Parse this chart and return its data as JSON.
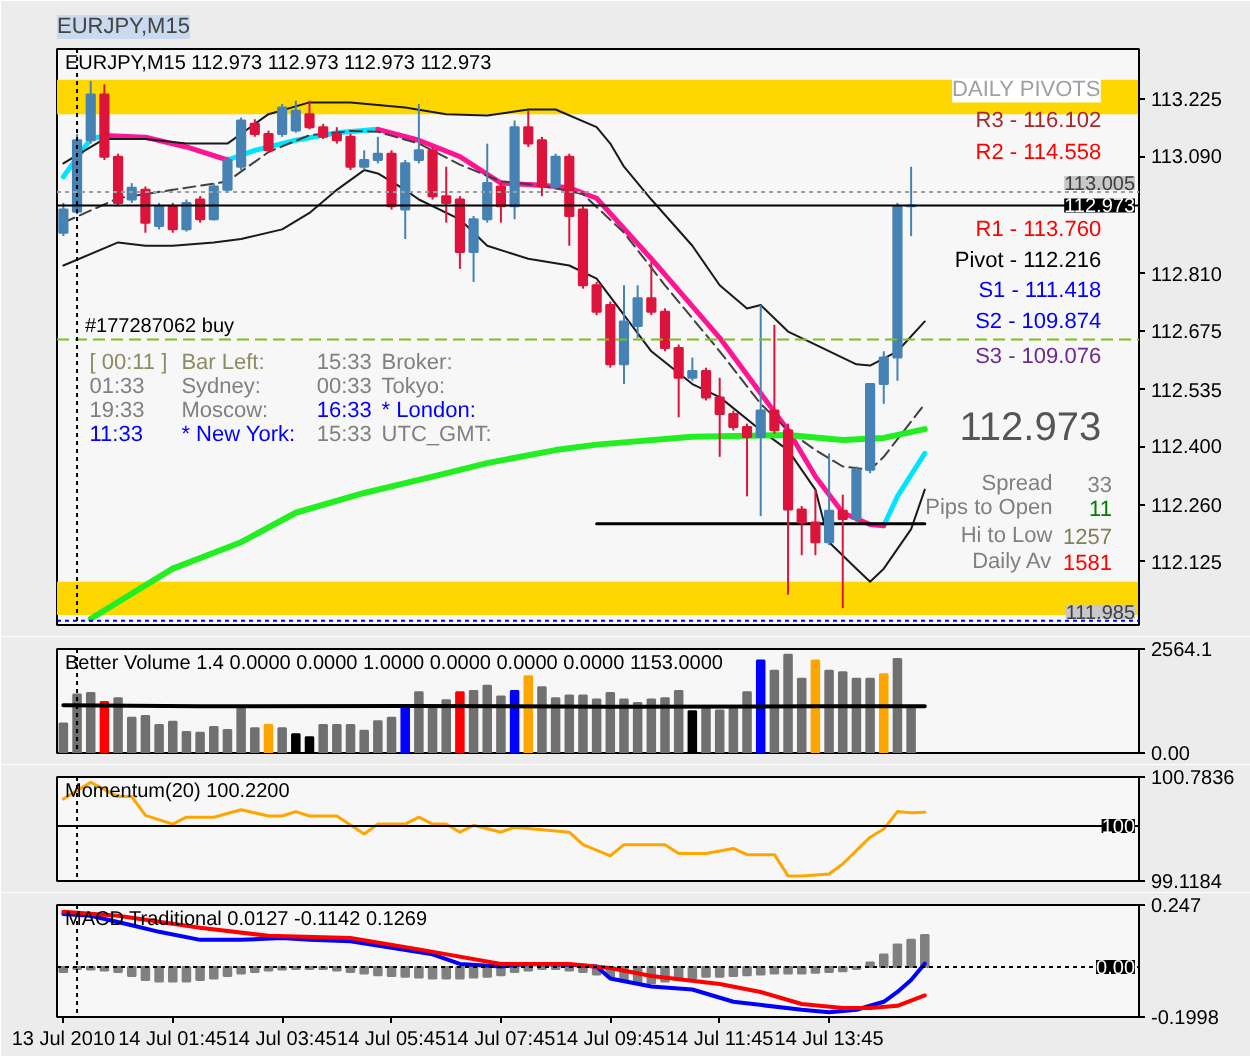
{
  "chart_data": [
    {
      "type": "candlestick",
      "title": "EURJPY,M15",
      "subtitle": "EURJPY,M15  112.973 112.973 112.973 112.973",
      "x": [
        "2010-07-13T23:45",
        "2010-07-14T00:00",
        "2010-07-14T00:15",
        "2010-07-14T00:30",
        "2010-07-14T00:45",
        "2010-07-14T01:00",
        "2010-07-14T01:15",
        "2010-07-14T01:30",
        "2010-07-14T01:45",
        "2010-07-14T02:00",
        "2010-07-14T02:15",
        "2010-07-14T02:30",
        "2010-07-14T02:45",
        "2010-07-14T03:00",
        "2010-07-14T03:15",
        "2010-07-14T03:30",
        "2010-07-14T03:45",
        "2010-07-14T04:00",
        "2010-07-14T04:15",
        "2010-07-14T04:30",
        "2010-07-14T04:45",
        "2010-07-14T05:00",
        "2010-07-14T05:15",
        "2010-07-14T05:30",
        "2010-07-14T05:45",
        "2010-07-14T06:00",
        "2010-07-14T06:15",
        "2010-07-14T06:30",
        "2010-07-14T06:45",
        "2010-07-14T07:00",
        "2010-07-14T07:15",
        "2010-07-14T07:30",
        "2010-07-14T07:45",
        "2010-07-14T08:00",
        "2010-07-14T08:15",
        "2010-07-14T08:30",
        "2010-07-14T08:45",
        "2010-07-14T09:00",
        "2010-07-14T09:15",
        "2010-07-14T09:30",
        "2010-07-14T09:45",
        "2010-07-14T10:00",
        "2010-07-14T10:15",
        "2010-07-14T10:30",
        "2010-07-14T10:45",
        "2010-07-14T11:00",
        "2010-07-14T11:15",
        "2010-07-14T11:30",
        "2010-07-14T11:45",
        "2010-07-14T12:00",
        "2010-07-14T12:15",
        "2010-07-14T12:30",
        "2010-07-14T12:45",
        "2010-07-14T13:00",
        "2010-07-14T13:15",
        "2010-07-14T13:30",
        "2010-07-14T13:45",
        "2010-07-14T14:00",
        "2010-07-14T14:15",
        "2010-07-14T14:30",
        "2010-07-14T14:45",
        "2010-07-14T15:00",
        "2010-07-14T15:15"
      ],
      "ohlc": [
        [
          112.908,
          112.979,
          112.9,
          112.963
        ],
        [
          112.958,
          113.143,
          112.952,
          113.128
        ],
        [
          113.128,
          113.269,
          113.12,
          113.237
        ],
        [
          113.237,
          113.261,
          113.081,
          113.089
        ],
        [
          113.089,
          113.096,
          112.971,
          112.979
        ],
        [
          112.987,
          113.026,
          112.979,
          113.015
        ],
        [
          113.01,
          113.018,
          112.908,
          112.932
        ],
        [
          112.924,
          112.979,
          112.916,
          112.971
        ],
        [
          112.971,
          112.979,
          112.908,
          112.916
        ],
        [
          112.916,
          112.987,
          112.911,
          112.979
        ],
        [
          112.987,
          112.995,
          112.932,
          112.94
        ],
        [
          112.94,
          113.026,
          112.937,
          113.018
        ],
        [
          113.01,
          113.089,
          113.005,
          113.081
        ],
        [
          113.065,
          113.182,
          113.057,
          113.175
        ],
        [
          113.167,
          113.178,
          113.136,
          113.143
        ],
        [
          113.143,
          113.151,
          113.099,
          113.104
        ],
        [
          113.143,
          113.214,
          113.136,
          113.206
        ],
        [
          113.151,
          113.222,
          113.146,
          113.198
        ],
        [
          113.19,
          113.222,
          113.154,
          113.159
        ],
        [
          113.159,
          113.167,
          113.131,
          113.136
        ],
        [
          113.143,
          113.159,
          113.12,
          113.128
        ],
        [
          113.136,
          113.143,
          113.057,
          113.065
        ],
        [
          113.065,
          113.104,
          113.057,
          113.081
        ],
        [
          113.081,
          113.136,
          113.073,
          113.096
        ],
        [
          113.096,
          113.104,
          112.963,
          112.971
        ],
        [
          112.963,
          113.081,
          112.893,
          113.073
        ],
        [
          113.081,
          113.214,
          113.073,
          113.104
        ],
        [
          113.104,
          113.112,
          112.987,
          112.995
        ],
        [
          112.995,
          113.065,
          112.932,
          112.979
        ],
        [
          112.987,
          112.995,
          112.822,
          112.862
        ],
        [
          112.862,
          112.948,
          112.791,
          112.94
        ],
        [
          112.94,
          113.12,
          112.932,
          113.026
        ],
        [
          113.018,
          113.026,
          112.932,
          112.971
        ],
        [
          112.971,
          113.175,
          112.94,
          113.159
        ],
        [
          113.159,
          113.198,
          113.112,
          113.12
        ],
        [
          113.128,
          113.136,
          112.995,
          113.018
        ],
        [
          113.018,
          113.096,
          113.01,
          113.089
        ],
        [
          113.089,
          113.096,
          112.877,
          112.948
        ],
        [
          112.963,
          112.971,
          112.775,
          112.783
        ],
        [
          112.783,
          112.791,
          112.712,
          112.72
        ],
        [
          112.736,
          112.744,
          112.587,
          112.595
        ],
        [
          112.595,
          112.783,
          112.548,
          112.697
        ],
        [
          112.686,
          112.783,
          112.658,
          112.752
        ],
        [
          112.752,
          112.838,
          112.712,
          112.72
        ],
        [
          112.72,
          112.728,
          112.626,
          112.634
        ],
        [
          112.634,
          112.642,
          112.469,
          112.563
        ],
        [
          112.563,
          112.611,
          112.556,
          112.579
        ],
        [
          112.579,
          112.587,
          112.509,
          112.516
        ],
        [
          112.516,
          112.563,
          112.375,
          112.477
        ],
        [
          112.477,
          112.485,
          112.438,
          112.446
        ],
        [
          112.446,
          112.454,
          112.281,
          112.422
        ],
        [
          112.422,
          112.736,
          112.234,
          112.485
        ],
        [
          112.485,
          112.689,
          112.43,
          112.438
        ],
        [
          112.438,
          112.454,
          112.047,
          112.25
        ],
        [
          112.25,
          112.258,
          112.141,
          112.219
        ],
        [
          112.219,
          112.297,
          112.141,
          112.172
        ],
        [
          112.172,
          112.383,
          112.165,
          112.247
        ],
        [
          112.247,
          112.285,
          112.015,
          112.227
        ],
        [
          112.227,
          112.352,
          112.219,
          112.344
        ],
        [
          112.344,
          112.548,
          112.336,
          112.548
        ],
        [
          112.548,
          112.626,
          112.501,
          112.611
        ],
        [
          112.611,
          112.979,
          112.556,
          112.971
        ],
        [
          112.971,
          113.065,
          112.9,
          112.973
        ]
      ],
      "colors": [
        "#4682b4",
        "#4682b4",
        "#4682b4",
        "#dc143c",
        "#dc143c",
        "#4682b4",
        "#dc143c",
        "#4682b4",
        "#dc143c",
        "#4682b4",
        "#dc143c",
        "#4682b4",
        "#4682b4",
        "#4682b4",
        "#dc143c",
        "#dc143c",
        "#4682b4",
        "#4682b4",
        "#dc143c",
        "#dc143c",
        "#dc143c",
        "#dc143c",
        "#4682b4",
        "#4682b4",
        "#dc143c",
        "#4682b4",
        "#4682b4",
        "#dc143c",
        "#dc143c",
        "#dc143c",
        "#4682b4",
        "#4682b4",
        "#dc143c",
        "#4682b4",
        "#dc143c",
        "#dc143c",
        "#4682b4",
        "#dc143c",
        "#dc143c",
        "#dc143c",
        "#dc143c",
        "#4682b4",
        "#4682b4",
        "#dc143c",
        "#dc143c",
        "#dc143c",
        "#4682b4",
        "#dc143c",
        "#dc143c",
        "#dc143c",
        "#dc143c",
        "#4682b4",
        "#dc143c",
        "#dc143c",
        "#dc143c",
        "#dc143c",
        "#4682b4",
        "#dc143c",
        "#4682b4",
        "#4682b4",
        "#4682b4",
        "#4682b4",
        "#4682b4"
      ],
      "series": [
        {
          "type": "line",
          "color": "#00e5ff",
          "x": [
            "2010-07-13T23:45",
            "2010-07-14T00:15",
            "2010-07-14T00:30",
            "2010-07-14T00:45",
            "2010-07-14T02:45",
            "2010-07-14T03:15",
            "2010-07-14T04:00",
            "2010-07-14T04:45",
            "2010-07-14T05:30",
            "2010-07-14T05:45",
            "2010-07-14T14:45",
            "2010-07-14T15:00",
            "2010-07-14T15:30"
          ],
          "values": [
            113.041,
            113.131,
            113.139,
            null,
            113.081,
            113.104,
            113.128,
            113.146,
            113.154,
            null,
            112.211,
            112.281,
            112.383
          ]
        },
        {
          "type": "line",
          "color": "#ff1493",
          "x": [
            "2010-07-14T00:30",
            "2010-07-14T01:15",
            "2010-07-14T02:00",
            "2010-07-14T02:45",
            "2010-07-14T03:00",
            "2010-07-14T05:30",
            "2010-07-14T06:15",
            "2010-07-14T07:00",
            "2010-07-14T07:45",
            "2010-07-14T08:30",
            "2010-07-14T09:00",
            "2010-07-14T09:30",
            "2010-07-14T10:30",
            "2010-07-14T11:45",
            "2010-07-14T13:00",
            "2010-07-14T13:30",
            "2010-07-14T14:00",
            "2010-07-14T14:30",
            "2010-07-14T14:45"
          ],
          "values": [
            113.139,
            113.135,
            113.112,
            113.081,
            null,
            113.154,
            113.128,
            113.089,
            113.026,
            113.021,
            113.015,
            112.99,
            112.846,
            112.658,
            112.438,
            112.328,
            112.242,
            112.214,
            112.211
          ]
        },
        {
          "type": "line",
          "color": "#1a1a1a",
          "x": [
            "2010-07-13T23:45",
            "2010-07-14T00:30",
            "2010-07-14T01:15",
            "2010-07-14T02:00",
            "2010-07-14T02:45",
            "2010-07-14T03:30",
            "2010-07-14T04:15",
            "2010-07-14T05:00",
            "2010-07-14T06:00",
            "2010-07-14T06:45",
            "2010-07-14T07:30",
            "2010-07-14T08:15",
            "2010-07-14T08:45",
            "2010-07-14T09:30",
            "2010-07-14T09:45",
            "2010-07-14T10:00",
            "2010-07-14T10:30",
            "2010-07-14T11:15",
            "2010-07-14T11:45",
            "2010-07-14T12:15",
            "2010-07-14T12:30",
            "2010-07-14T13:00",
            "2010-07-14T13:30",
            "2010-07-14T14:15",
            "2010-07-14T14:30",
            "2010-07-14T15:00",
            "2010-07-14T15:30"
          ],
          "values": [
            113.073,
            113.131,
            113.131,
            113.12,
            113.12,
            113.19,
            113.218,
            113.218,
            113.206,
            113.19,
            113.187,
            113.201,
            113.201,
            113.159,
            113.12,
            113.065,
            112.987,
            112.877,
            112.783,
            112.728,
            112.736,
            112.673,
            112.642,
            112.595,
            112.592,
            112.626,
            112.697
          ]
        },
        {
          "type": "line",
          "color": "#1a1a1a",
          "x": [
            "2010-07-13T23:45",
            "2010-07-14T00:45",
            "2010-07-14T01:15",
            "2010-07-14T01:45",
            "2010-07-14T02:30",
            "2010-07-14T03:00",
            "2010-07-14T03:45",
            "2010-07-14T04:15",
            "2010-07-14T04:45",
            "2010-07-14T05:15",
            "2010-07-14T05:30",
            "2010-07-14T06:00",
            "2010-07-14T06:15",
            "2010-07-14T07:00",
            "2010-07-14T07:30",
            "2010-07-14T08:15",
            "2010-07-14T09:00",
            "2010-07-14T09:30",
            "2010-07-14T10:30",
            "2010-07-14T11:15",
            "2010-07-14T11:45",
            "2010-07-14T12:30",
            "2010-07-14T13:00",
            "2010-07-14T13:30",
            "2010-07-14T13:45",
            "2010-07-14T14:15",
            "2010-07-14T14:30",
            "2010-07-14T14:45",
            "2010-07-14T15:15",
            "2010-07-14T15:30"
          ],
          "values": [
            112.83,
            112.885,
            112.877,
            112.877,
            112.885,
            112.893,
            112.916,
            112.955,
            113.01,
            113.057,
            113.049,
            113.01,
            112.987,
            112.94,
            112.877,
            112.846,
            112.83,
            112.799,
            112.626,
            112.548,
            112.517,
            112.438,
            112.391,
            112.297,
            112.172,
            112.109,
            112.078,
            112.109,
            112.203,
            112.297
          ]
        },
        {
          "type": "line",
          "color": "#404040",
          "line_style": "dashed",
          "x": [
            "2010-07-13T23:45",
            "2010-07-14T00:45",
            "2010-07-14T01:45",
            "2010-07-14T02:45",
            "2010-07-14T03:30",
            "2010-07-14T04:15",
            "2010-07-14T05:00",
            "2010-07-14T05:30",
            "2010-07-14T06:15",
            "2010-07-14T07:00",
            "2010-07-14T07:45",
            "2010-07-14T08:30",
            "2010-07-14T09:15",
            "2010-07-14T10:00",
            "2010-07-14T10:45",
            "2010-07-14T11:45",
            "2010-07-14T12:30",
            "2010-07-14T13:00",
            "2010-07-14T13:30",
            "2010-07-14T14:00",
            "2010-07-14T14:30",
            "2010-07-14T14:45",
            "2010-07-14T15:30"
          ],
          "values": [
            112.932,
            112.99,
            113.01,
            113.03,
            113.1,
            113.14,
            113.15,
            113.148,
            113.12,
            113.07,
            113.03,
            113.02,
            113.0,
            112.908,
            112.783,
            112.626,
            112.501,
            112.438,
            112.391,
            112.352,
            112.344,
            112.375,
            112.501
          ]
        },
        {
          "type": "line",
          "color": "#22ee22",
          "x": [
            "2010-07-14T00:15",
            "2010-07-14T01:45",
            "2010-07-14T03:00",
            "2010-07-14T04:00",
            "2010-07-14T05:15",
            "2010-07-14T06:30",
            "2010-07-14T07:30",
            "2010-07-14T08:45",
            "2010-07-14T09:30",
            "2010-07-14T11:15",
            "2010-07-14T13:00",
            "2010-07-14T14:00",
            "2010-07-14T14:45",
            "2010-07-14T15:30"
          ],
          "values": [
            111.99,
            112.109,
            112.172,
            112.242,
            112.289,
            112.328,
            112.36,
            112.391,
            112.404,
            112.423,
            112.427,
            112.415,
            112.42,
            112.441
          ]
        },
        {
          "type": "line",
          "color": "#000000",
          "x": [
            "2010-07-14T09:30",
            "2010-07-14T15:30"
          ],
          "values": [
            112.216,
            112.216
          ]
        }
      ],
      "xlim": [
        "2010-07-13T23:38",
        "2010-07-14T19:25"
      ],
      "ylim": [
        111.975,
        113.345
      ],
      "yticks": [
        113.225,
        {
          "value": 113.09,
          "label": "113.090"
        },
        {
          "value": 112.81,
          "label": "112.810"
        },
        112.675,
        112.535,
        {
          "value": 112.4,
          "label": "112.400"
        },
        {
          "value": 112.26,
          "label": "112.260"
        },
        112.125
      ],
      "tick_labels": "y",
      "bands": [
        {
          "axis": "y",
          "from": 113.19,
          "to": 113.272,
          "color": "#ffd700"
        },
        {
          "axis": "y",
          "from": 111.999,
          "to": 112.078,
          "color": "#ffd700"
        }
      ],
      "ref_lines": [
        {
          "axis": "y",
          "value": 112.973,
          "label": "112.973",
          "color": "#000000"
        },
        {
          "axis": "y",
          "value": 113.005,
          "label": "113.005",
          "color": "#a0a0a0",
          "line_style": "dotted"
        },
        {
          "axis": "y",
          "value": 112.654,
          "label": "#177287062 buy",
          "color": "#7cc01e",
          "line_style": "dashed"
        },
        {
          "axis": "y",
          "value": 111.985,
          "label": "111.985",
          "color": "#0000ff",
          "line_style": "dotted"
        },
        {
          "axis": "x",
          "value": "2010-07-14T00:00",
          "color": "#000000",
          "line_style": "dotted"
        }
      ],
      "annotations": [
        "DAILY PIVOTS",
        "R3 - 116.102",
        "R2 - 114.558",
        "R1 - 113.760",
        "Pivot - 112.216",
        "S1 - 111.418",
        "S2 - 109.874",
        "S3 - 109.076",
        "112.973",
        "Spread",
        "33",
        "Pips to Open",
        "11",
        "Hi to Low",
        "1257",
        "Daily Av",
        "1581",
        "[ 00:11 ]",
        "Bar Left:",
        "15:33",
        "Broker:",
        "01:33",
        "Sydney:",
        "00:33",
        "Tokyo:",
        "19:33",
        "Moscow:",
        "16:33",
        "* London:",
        "11:33",
        "* New York:",
        "15:33",
        "UTC_GMT:"
      ]
    },
    {
      "type": "bar",
      "title": "Better Volume 1.4 0.0000 0.0000 1.0000 0.0000 0.0000 0.0000 1153.0000",
      "x": [
        "2010-07-13T23:45",
        "2010-07-14T00:00",
        "2010-07-14T00:15",
        "2010-07-14T00:30",
        "2010-07-14T00:45",
        "2010-07-14T01:00",
        "2010-07-14T01:15",
        "2010-07-14T01:30",
        "2010-07-14T01:45",
        "2010-07-14T02:00",
        "2010-07-14T02:15",
        "2010-07-14T02:30",
        "2010-07-14T02:45",
        "2010-07-14T03:00",
        "2010-07-14T03:15",
        "2010-07-14T03:30",
        "2010-07-14T03:45",
        "2010-07-14T04:00",
        "2010-07-14T04:15",
        "2010-07-14T04:30",
        "2010-07-14T04:45",
        "2010-07-14T05:00",
        "2010-07-14T05:15",
        "2010-07-14T05:30",
        "2010-07-14T05:45",
        "2010-07-14T06:00",
        "2010-07-14T06:15",
        "2010-07-14T06:30",
        "2010-07-14T06:45",
        "2010-07-14T07:00",
        "2010-07-14T07:15",
        "2010-07-14T07:30",
        "2010-07-14T07:45",
        "2010-07-14T08:00",
        "2010-07-14T08:15",
        "2010-07-14T08:30",
        "2010-07-14T08:45",
        "2010-07-14T09:00",
        "2010-07-14T09:15",
        "2010-07-14T09:30",
        "2010-07-14T09:45",
        "2010-07-14T10:00",
        "2010-07-14T10:15",
        "2010-07-14T10:30",
        "2010-07-14T10:45",
        "2010-07-14T11:00",
        "2010-07-14T11:15",
        "2010-07-14T11:30",
        "2010-07-14T11:45",
        "2010-07-14T12:00",
        "2010-07-14T12:15",
        "2010-07-14T12:30",
        "2010-07-14T12:45",
        "2010-07-14T13:00",
        "2010-07-14T13:15",
        "2010-07-14T13:30",
        "2010-07-14T13:45",
        "2010-07-14T14:00",
        "2010-07-14T14:15",
        "2010-07-14T14:30",
        "2010-07-14T14:45",
        "2010-07-14T15:00",
        "2010-07-14T15:15"
      ],
      "series": [
        {
          "type": "bar",
          "colors": [
            "#707070",
            "#707070",
            "#707070",
            "#ff0000",
            "#707070",
            "#707070",
            "#707070",
            "#707070",
            "#707070",
            "#707070",
            "#707070",
            "#707070",
            "#707070",
            "#707070",
            "#707070",
            "#ffa500",
            "#707070",
            "#000000",
            "#000000",
            "#707070",
            "#707070",
            "#707070",
            "#707070",
            "#707070",
            "#707070",
            "#0000ff",
            "#707070",
            "#707070",
            "#707070",
            "#ff0000",
            "#707070",
            "#707070",
            "#707070",
            "#0000ff",
            "#ffa500",
            "#707070",
            "#707070",
            "#707070",
            "#707070",
            "#707070",
            "#707070",
            "#707070",
            "#707070",
            "#707070",
            "#707070",
            "#707070",
            "#000000",
            "#707070",
            "#707070",
            "#707070",
            "#707070",
            "#0000ff",
            "#707070",
            "#707070",
            "#707070",
            "#ffa500",
            "#707070",
            "#707070",
            "#707070",
            "#707070",
            "#ffa500",
            "#707070",
            "#707070"
          ],
          "values": [
            730,
            1440,
            1480,
            1260,
            1350,
            870,
            910,
            690,
            770,
            520,
            500,
            640,
            570,
            1140,
            610,
            690,
            610,
            460,
            390,
            690,
            690,
            690,
            550,
            780,
            870,
            1140,
            1500,
            1100,
            1300,
            1500,
            1530,
            1660,
            1390,
            1530,
            1890,
            1620,
            1350,
            1420,
            1420,
            1320,
            1480,
            1320,
            1230,
            1320,
            1350,
            1530,
            1030,
            1100,
            1050,
            1090,
            1500,
            2280,
            2030,
            2420,
            1830,
            2280,
            2030,
            1990,
            1830,
            1830,
            1940,
            2320,
            1140
          ]
        },
        {
          "type": "line",
          "color": "#000000",
          "x": [
            "2010-07-13T23:45",
            "2010-07-14T02:15",
            "2010-07-14T06:00",
            "2010-07-14T09:45",
            "2010-07-14T13:30",
            "2010-07-14T15:30"
          ],
          "values": [
            1180,
            1150,
            1160,
            1140,
            1150,
            1150
          ]
        }
      ],
      "xlim": [
        "2010-07-13T23:38",
        "2010-07-14T19:25"
      ],
      "ylim": [
        0,
        2564.1
      ],
      "yticks": [
        {
          "value": 0,
          "label": "0.00"
        },
        2564.1
      ],
      "tick_labels": "y",
      "ref_lines": [
        {
          "axis": "x",
          "value": "2010-07-14T00:00",
          "color": "#000000",
          "line_style": "dotted"
        }
      ]
    },
    {
      "type": "line",
      "title": "Momentum(20) 100.2200",
      "x": [
        "2010-07-13T23:45",
        "2010-07-14T00:15",
        "2010-07-14T00:45",
        "2010-07-14T01:00",
        "2010-07-14T01:15",
        "2010-07-14T01:45",
        "2010-07-14T02:00",
        "2010-07-14T02:30",
        "2010-07-14T03:00",
        "2010-07-14T03:30",
        "2010-07-14T03:45",
        "2010-07-14T04:00",
        "2010-07-14T04:15",
        "2010-07-14T04:45",
        "2010-07-14T05:15",
        "2010-07-14T05:30",
        "2010-07-14T06:00",
        "2010-07-14T06:15",
        "2010-07-14T06:30",
        "2010-07-14T06:45",
        "2010-07-14T07:00",
        "2010-07-14T07:15",
        "2010-07-14T07:45",
        "2010-07-14T08:00",
        "2010-07-14T08:30",
        "2010-07-14T09:00",
        "2010-07-14T09:15",
        "2010-07-14T09:45",
        "2010-07-14T10:00",
        "2010-07-14T10:45",
        "2010-07-14T11:00",
        "2010-07-14T11:30",
        "2010-07-14T12:00",
        "2010-07-14T12:15",
        "2010-07-14T12:45",
        "2010-07-14T13:00",
        "2010-07-14T13:15",
        "2010-07-14T13:45",
        "2010-07-14T14:00",
        "2010-07-14T14:30",
        "2010-07-14T14:45",
        "2010-07-14T15:00",
        "2010-07-14T15:15",
        "2010-07-14T15:30"
      ],
      "series": [
        {
          "color": "#ffa500",
          "values": [
            100.43,
            100.7,
            100.47,
            100.47,
            100.17,
            100.03,
            100.14,
            100.14,
            100.26,
            100.16,
            100.16,
            100.23,
            100.16,
            100.16,
            99.87,
            100.03,
            100.03,
            100.14,
            100.03,
            100.03,
            99.9,
            100.01,
            99.9,
            99.98,
            99.94,
            99.9,
            99.7,
            99.52,
            99.7,
            99.7,
            99.56,
            99.56,
            99.64,
            99.54,
            99.54,
            99.2,
            99.2,
            99.23,
            99.39,
            99.82,
            99.95,
            100.23,
            100.21,
            100.22
          ]
        }
      ],
      "xlim": [
        "2010-07-13T23:38",
        "2010-07-14T19:25"
      ],
      "ylim": [
        99.1184,
        100.7836
      ],
      "yticks": [
        99.1184,
        100.7836
      ],
      "tick_labels": "y",
      "ref_lines": [
        {
          "axis": "y",
          "value": 100,
          "label": "100",
          "color": "#000000"
        },
        {
          "axis": "x",
          "value": "2010-07-14T00:00",
          "color": "#000000",
          "line_style": "dotted"
        }
      ]
    },
    {
      "type": "bar",
      "title": "MACD Traditional 0.0127 -0.1142 0.1269",
      "x": [
        "2010-07-13T23:45",
        "2010-07-14T00:00",
        "2010-07-14T00:15",
        "2010-07-14T00:30",
        "2010-07-14T00:45",
        "2010-07-14T01:00",
        "2010-07-14T01:15",
        "2010-07-14T01:30",
        "2010-07-14T01:45",
        "2010-07-14T02:00",
        "2010-07-14T02:15",
        "2010-07-14T02:30",
        "2010-07-14T02:45",
        "2010-07-14T03:00",
        "2010-07-14T03:15",
        "2010-07-14T03:30",
        "2010-07-14T03:45",
        "2010-07-14T04:00",
        "2010-07-14T04:15",
        "2010-07-14T04:30",
        "2010-07-14T04:45",
        "2010-07-14T05:00",
        "2010-07-14T05:15",
        "2010-07-14T05:30",
        "2010-07-14T05:45",
        "2010-07-14T06:00",
        "2010-07-14T06:15",
        "2010-07-14T06:30",
        "2010-07-14T06:45",
        "2010-07-14T07:00",
        "2010-07-14T07:15",
        "2010-07-14T07:30",
        "2010-07-14T07:45",
        "2010-07-14T08:00",
        "2010-07-14T08:15",
        "2010-07-14T08:30",
        "2010-07-14T08:45",
        "2010-07-14T09:00",
        "2010-07-14T09:15",
        "2010-07-14T09:30",
        "2010-07-14T09:45",
        "2010-07-14T10:00",
        "2010-07-14T10:15",
        "2010-07-14T10:30",
        "2010-07-14T10:45",
        "2010-07-14T11:00",
        "2010-07-14T11:15",
        "2010-07-14T11:30",
        "2010-07-14T11:45",
        "2010-07-14T12:00",
        "2010-07-14T12:15",
        "2010-07-14T12:30",
        "2010-07-14T12:45",
        "2010-07-14T13:00",
        "2010-07-14T13:15",
        "2010-07-14T13:30",
        "2010-07-14T13:45",
        "2010-07-14T14:00",
        "2010-07-14T14:15",
        "2010-07-14T14:30",
        "2010-07-14T14:45",
        "2010-07-14T15:00",
        "2010-07-14T15:15",
        "2010-07-14T15:30"
      ],
      "series": [
        {
          "type": "bar",
          "color": "#808080",
          "values": [
            -0.02,
            -0.008,
            -0.01,
            -0.014,
            -0.02,
            -0.036,
            -0.052,
            -0.058,
            -0.058,
            -0.058,
            -0.052,
            -0.046,
            -0.036,
            -0.026,
            -0.02,
            -0.014,
            -0.01,
            -0.008,
            -0.008,
            -0.008,
            -0.014,
            -0.02,
            -0.026,
            -0.033,
            -0.036,
            -0.039,
            -0.042,
            -0.046,
            -0.046,
            -0.046,
            -0.042,
            -0.039,
            -0.033,
            -0.02,
            -0.014,
            -0.008,
            -0.008,
            -0.014,
            -0.02,
            -0.03,
            -0.039,
            -0.058,
            -0.062,
            -0.065,
            -0.058,
            -0.052,
            -0.046,
            -0.039,
            -0.039,
            -0.036,
            -0.033,
            -0.03,
            -0.026,
            -0.026,
            -0.026,
            -0.023,
            -0.02,
            -0.017,
            -0.008,
            0.018,
            0.05,
            0.089,
            0.108,
            0.127
          ]
        },
        {
          "type": "line",
          "color": "#0000ff",
          "x": [
            "2010-07-13T23:45",
            "2010-07-14T00:15",
            "2010-07-14T01:00",
            "2010-07-14T01:30",
            "2010-07-14T02:15",
            "2010-07-14T03:00",
            "2010-07-14T03:45",
            "2010-07-14T04:15",
            "2010-07-14T05:00",
            "2010-07-14T05:45",
            "2010-07-14T06:30",
            "2010-07-14T07:00",
            "2010-07-14T07:45",
            "2010-07-14T08:15",
            "2010-07-14T09:00",
            "2010-07-14T09:30",
            "2010-07-14T09:45",
            "2010-07-14T10:30",
            "2010-07-14T11:15",
            "2010-07-14T12:00",
            "2010-07-14T13:15",
            "2010-07-14T13:45",
            "2010-07-14T14:15",
            "2010-07-14T14:45",
            "2010-07-14T15:00",
            "2010-07-14T15:15",
            "2010-07-14T15:30"
          ],
          "values": [
            0.211,
            0.204,
            0.166,
            0.14,
            0.108,
            0.108,
            0.115,
            0.108,
            0.102,
            0.076,
            0.05,
            0.012,
            0.002,
            0.012,
            0.009,
            0.002,
            -0.046,
            -0.078,
            -0.09,
            -0.139,
            -0.171,
            -0.181,
            -0.171,
            -0.139,
            -0.1,
            -0.052,
            0.013
          ]
        },
        {
          "type": "line",
          "color": "#ff0000",
          "x": [
            "2010-07-13T23:45",
            "2010-07-14T00:45",
            "2010-07-14T02:15",
            "2010-07-14T03:30",
            "2010-07-14T05:00",
            "2010-07-14T06:15",
            "2010-07-14T07:45",
            "2010-07-14T09:00",
            "2010-07-14T09:45",
            "2010-07-14T10:30",
            "2010-07-14T11:45",
            "2010-07-14T12:30",
            "2010-07-14T13:15",
            "2010-07-14T14:00",
            "2010-07-14T14:30",
            "2010-07-14T15:00",
            "2010-07-14T15:30"
          ],
          "values": [
            0.22,
            0.204,
            0.156,
            0.124,
            0.115,
            0.07,
            0.012,
            0.012,
            -0.004,
            -0.036,
            -0.068,
            -0.1,
            -0.148,
            -0.164,
            -0.164,
            -0.155,
            -0.114
          ]
        }
      ],
      "xlim": [
        "2010-07-13T23:38",
        "2010-07-14T19:25"
      ],
      "ylim": [
        -0.1998,
        0.247
      ],
      "yticks": [
        -0.1998,
        0.247
      ],
      "xticks": [
        {
          "value": "2010-07-13T23:45",
          "label": "13 Jul 2010"
        },
        {
          "value": "2010-07-14T01:45",
          "label": "14 Jul 01:45"
        },
        {
          "value": "2010-07-14T03:45",
          "label": "14 Jul 03:45"
        },
        {
          "value": "2010-07-14T05:45",
          "label": "14 Jul 05:45"
        },
        {
          "value": "2010-07-14T07:45",
          "label": "14 Jul 07:45"
        },
        {
          "value": "2010-07-14T09:45",
          "label": "14 Jul 09:45"
        },
        {
          "value": "2010-07-14T11:45",
          "label": "14 Jul 11:45"
        },
        {
          "value": "2010-07-14T13:45",
          "label": "14 Jul 13:45"
        }
      ],
      "ref_lines": [
        {
          "axis": "y",
          "value": 0,
          "label": "0.00",
          "color": "#000000",
          "line_style": "dotted"
        },
        {
          "axis": "x",
          "value": "2010-07-14T00:00",
          "color": "#000000",
          "line_style": "dotted"
        }
      ]
    }
  ]
}
